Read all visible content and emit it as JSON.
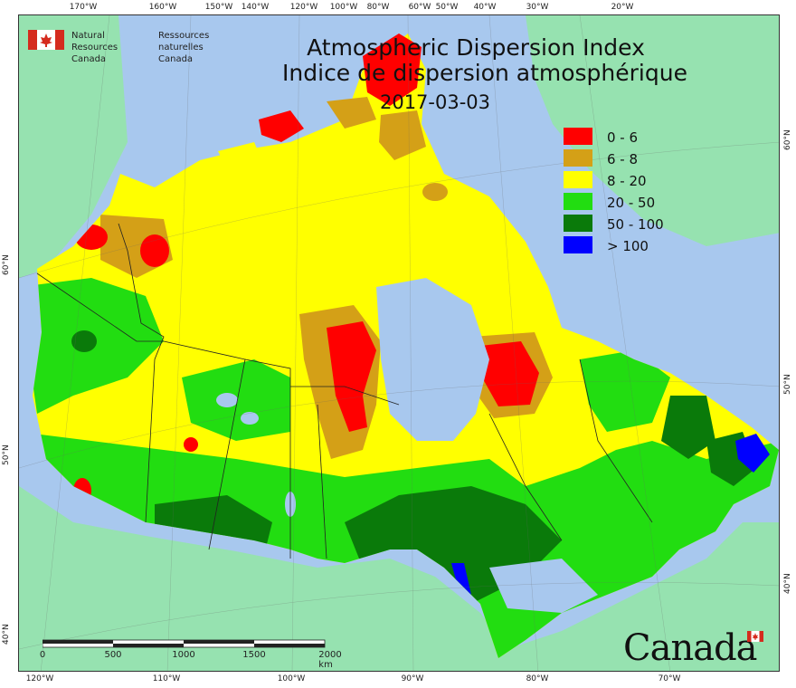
{
  "title": {
    "line1": "Atmospheric Dispersion Index",
    "line2": "Indice de dispersion atmosphérique",
    "date": "2017-03-03"
  },
  "agency": {
    "en_line1": "Natural Resources",
    "en_line2": "Canada",
    "fr_line1": "Ressources naturelles",
    "fr_line2": "Canada"
  },
  "wordmark": "Canada",
  "legend": [
    {
      "label": "0 - 6",
      "color": "#ff0000"
    },
    {
      "label": "6 - 8",
      "color": "#d4a017"
    },
    {
      "label": "8 - 20",
      "color": "#ffff00"
    },
    {
      "label": "20 - 50",
      "color": "#22dd11"
    },
    {
      "label": "50 - 100",
      "color": "#0a7a0a"
    },
    {
      "label": "> 100",
      "color": "#0000ff"
    }
  ],
  "colors": {
    "ocean": "#a8c8ee",
    "land_outside": "#96e2b0",
    "greenland": "#96e2b0",
    "usa": "#96e2b0"
  },
  "graticule": {
    "top": [
      "170°W",
      "160°W",
      "150°W",
      "140°W",
      "120°W",
      "100°W",
      "80°W",
      "60°W",
      "50°W",
      "40°W",
      "30°W",
      "20°W"
    ],
    "bottom": [
      "120°W",
      "110°W",
      "100°W",
      "90°W",
      "80°W",
      "70°W"
    ],
    "left": [
      "60°N",
      "50°N",
      "40°N"
    ],
    "right": [
      "60°N",
      "50°N",
      "40°N"
    ]
  },
  "scalebar": {
    "ticks": [
      "0",
      "500",
      "1000",
      "1500",
      "2000 km"
    ]
  }
}
